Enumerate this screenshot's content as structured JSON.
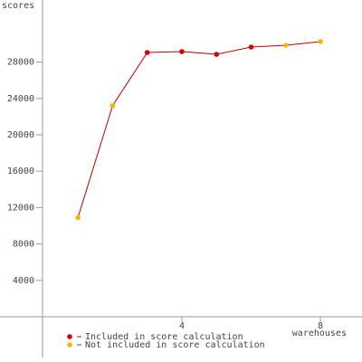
{
  "chart_data": {
    "type": "line",
    "y_label": "scores",
    "x_label": "warehouses",
    "x": [
      1,
      2,
      3,
      4,
      5,
      6,
      7,
      8
    ],
    "series": [
      {
        "name": "Included in score calculation",
        "color": "#d40000",
        "values": [
          null,
          null,
          29050,
          29150,
          28850,
          29650,
          null,
          null
        ]
      },
      {
        "name": "Not included in score calculation",
        "color": "#f5b800",
        "values": [
          10900,
          23200,
          null,
          null,
          null,
          null,
          29850,
          30250
        ]
      }
    ],
    "line_color": "#c00000",
    "xlim": [
      -1.25,
      9.2
    ],
    "ylim": [
      -4975,
      34825
    ],
    "xticks": [
      4,
      8
    ],
    "yticks": [
      4000,
      8000,
      12000,
      16000,
      20000,
      24000,
      28000
    ]
  }
}
